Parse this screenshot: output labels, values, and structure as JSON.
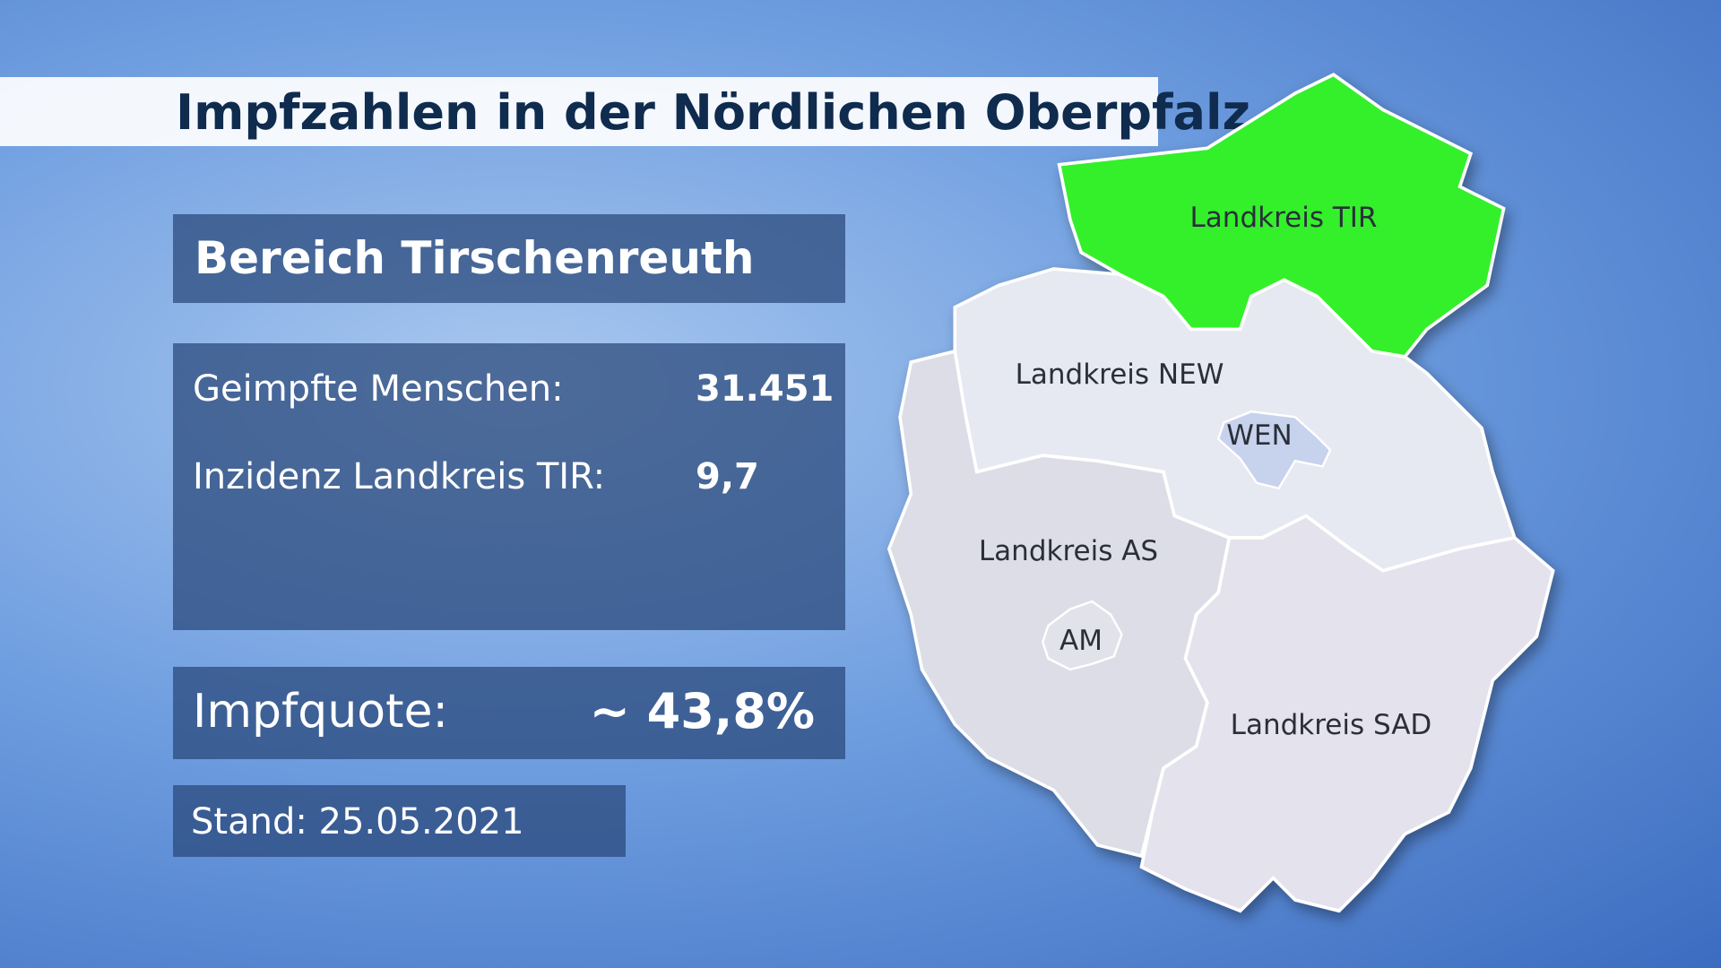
{
  "header": {
    "title": "Impfzahlen in der Nördlichen Oberpfalz"
  },
  "panel": {
    "heading": "Bereich Tirschenreuth",
    "rows": [
      [
        "Geimpfte Menschen:",
        "31.451"
      ],
      [
        "Inzidenz Landkreis TIR:",
        "9,7"
      ]
    ],
    "quote": [
      "Impfquote:",
      "~ 43,8%"
    ],
    "date": "Stand: 25.05.2021"
  },
  "map": {
    "regions": [
      "Landkreis TIR",
      "Landkreis NEW",
      "WEN",
      "Landkreis AS",
      "AM",
      "Landkreis SAD"
    ]
  }
}
